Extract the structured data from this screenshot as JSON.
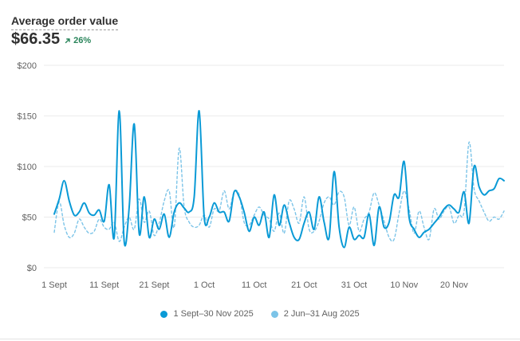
{
  "header": {
    "title": "Average order value",
    "value": "$66.35",
    "change": "26%",
    "change_direction": "up",
    "change_color": "#29845a",
    "change_icon": "arrow-up-right-icon"
  },
  "legend": {
    "current_label": "1 Sept–30 Nov 2025",
    "previous_label": "2 Jun–31 Aug 2025"
  },
  "colors": {
    "current": "#0a9ad6",
    "previous": "#7cc4e8",
    "grid": "#ebebeb",
    "axis_text": "#616161"
  },
  "chart_data": {
    "type": "line",
    "ylim": [
      0,
      200
    ],
    "yticks": [
      "$0",
      "$50",
      "$100",
      "$150",
      "$200"
    ],
    "xticks": [
      {
        "label": "1 Sept",
        "day": 0
      },
      {
        "label": "11 Sept",
        "day": 10
      },
      {
        "label": "21 Sept",
        "day": 20
      },
      {
        "label": "1 Oct",
        "day": 30
      },
      {
        "label": "11 Oct",
        "day": 40
      },
      {
        "label": "21 Oct",
        "day": 50
      },
      {
        "label": "31 Oct",
        "day": 60
      },
      {
        "label": "10 Nov",
        "day": 70
      },
      {
        "label": "20 Nov",
        "day": 80
      }
    ],
    "grid": true,
    "legend_position": "bottom-center",
    "series": [
      {
        "name": "1 Sept–30 Nov 2025",
        "style": "solid",
        "x": [
          0,
          1,
          2,
          3,
          4,
          5,
          6,
          7,
          8,
          9,
          10,
          11,
          12,
          13,
          14,
          15,
          16,
          17,
          18,
          19,
          20,
          21,
          22,
          23,
          24,
          25,
          26,
          27,
          28,
          29,
          30,
          31,
          32,
          33,
          34,
          35,
          36,
          37,
          38,
          39,
          40,
          41,
          42,
          43,
          44,
          45,
          46,
          47,
          48,
          49,
          50,
          51,
          52,
          53,
          54,
          55,
          56,
          57,
          58,
          59,
          60,
          61,
          62,
          63,
          64,
          65,
          66,
          67,
          68,
          69,
          70,
          71,
          72,
          73,
          74,
          75,
          76,
          77,
          78,
          79,
          80,
          81,
          82,
          83,
          84,
          85,
          86,
          87,
          88,
          89,
          90
        ],
        "values": [
          53,
          68,
          86,
          66,
          52,
          55,
          64,
          54,
          52,
          57,
          46,
          82,
          30,
          155,
          26,
          60,
          142,
          34,
          70,
          30,
          48,
          38,
          53,
          30,
          55,
          64,
          59,
          55,
          70,
          155,
          50,
          50,
          64,
          55,
          55,
          46,
          75,
          70,
          55,
          36,
          50,
          42,
          55,
          30,
          72,
          42,
          62,
          45,
          30,
          28,
          44,
          55,
          38,
          70,
          45,
          30,
          95,
          40,
          20,
          40,
          28,
          32,
          30,
          53,
          22,
          60,
          40,
          45,
          72,
          70,
          105,
          50,
          38,
          30,
          35,
          38,
          44,
          50,
          58,
          62,
          58,
          55,
          75,
          44,
          100,
          80,
          72,
          76,
          78,
          88,
          86
        ]
      },
      {
        "name": "2 Jun–31 Aug 2025",
        "style": "dashed",
        "x": [
          0,
          1,
          2,
          3,
          4,
          5,
          6,
          7,
          8,
          9,
          10,
          11,
          12,
          13,
          14,
          15,
          16,
          17,
          18,
          19,
          20,
          21,
          22,
          23,
          24,
          25,
          26,
          27,
          28,
          29,
          30,
          31,
          32,
          33,
          34,
          35,
          36,
          37,
          38,
          39,
          40,
          41,
          42,
          43,
          44,
          45,
          46,
          47,
          48,
          49,
          50,
          51,
          52,
          53,
          54,
          55,
          56,
          57,
          58,
          59,
          60,
          61,
          62,
          63,
          64,
          65,
          66,
          67,
          68,
          69,
          70,
          71,
          72,
          73,
          74,
          75,
          76,
          77,
          78,
          79,
          80,
          81,
          82,
          83,
          84,
          85,
          86,
          87,
          88,
          89,
          90
        ],
        "values": [
          35,
          65,
          42,
          30,
          34,
          48,
          40,
          34,
          36,
          48,
          40,
          38,
          45,
          26,
          40,
          50,
          38,
          68,
          45,
          56,
          32,
          44,
          66,
          76,
          40,
          118,
          60,
          45,
          40,
          42,
          52,
          40,
          58,
          56,
          76,
          58,
          75,
          72,
          45,
          42,
          52,
          60,
          52,
          48,
          36,
          54,
          34,
          66,
          58,
          44,
          70,
          38,
          36,
          46,
          64,
          70,
          62,
          75,
          70,
          42,
          60,
          36,
          48,
          55,
          74,
          62,
          46,
          30,
          28,
          54,
          76,
          58,
          34,
          56,
          40,
          28,
          58,
          48,
          56,
          60,
          44,
          52,
          56,
          124,
          78,
          66,
          55,
          46,
          50,
          48,
          56
        ]
      }
    ]
  }
}
